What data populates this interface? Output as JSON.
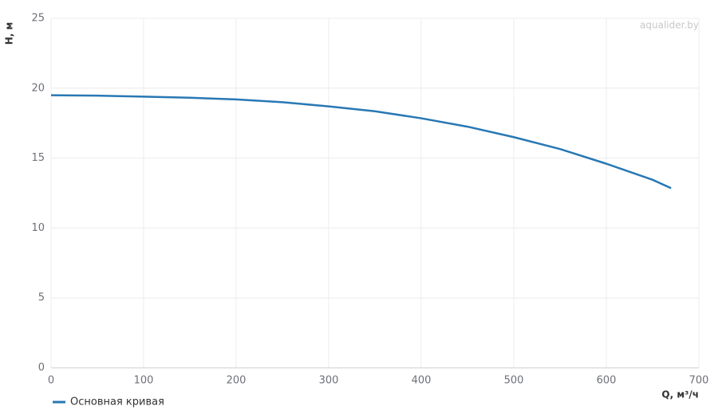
{
  "chart_data": {
    "type": "line",
    "x_label": "Q, м³/ч",
    "y_label": "H, м",
    "watermark": "aqualider.by",
    "x": [
      0,
      50,
      100,
      150,
      200,
      250,
      300,
      350,
      400,
      450,
      500,
      550,
      600,
      650,
      670
    ],
    "series": [
      {
        "name": "Основная кривая",
        "color": "#2878b4",
        "values": [
          19.5,
          19.47,
          19.4,
          19.32,
          19.2,
          19.0,
          18.7,
          18.35,
          17.85,
          17.25,
          16.5,
          15.65,
          14.6,
          13.45,
          12.85
        ]
      }
    ],
    "xlim": [
      0,
      700
    ],
    "xticks": [
      0,
      100,
      200,
      300,
      400,
      500,
      600,
      700
    ],
    "ylim": [
      0,
      25
    ],
    "yticks": [
      0,
      5,
      10,
      15,
      20,
      25
    ],
    "grid": true,
    "legend": "bottom-left"
  }
}
